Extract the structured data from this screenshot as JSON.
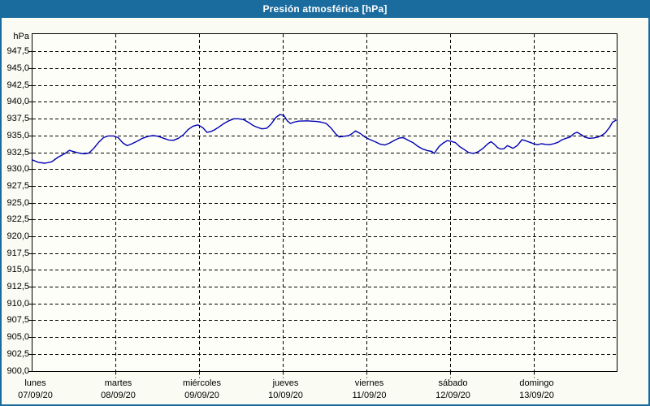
{
  "window": {
    "title": "Presión atmosférica [hPa]",
    "titlebar_color": "#1B6C9E",
    "border_color": "#1B6C9E",
    "background_color": "#FAFBF2"
  },
  "chart_data": {
    "type": "line",
    "title": "Presión atmosférica [hPa]",
    "unit": "hPa",
    "ylim": [
      900,
      950
    ],
    "ytick_step": 2.5,
    "yticks_values": [
      947.5,
      945.0,
      942.5,
      940.0,
      937.5,
      935.0,
      932.5,
      930.0,
      927.5,
      925.0,
      922.5,
      920.0,
      917.5,
      915.0,
      912.5,
      910.0,
      907.5,
      905.0,
      902.5,
      900.0
    ],
    "yticks_display": [
      "947,5",
      "945,0",
      "942,5",
      "940,0",
      "937,5",
      "935,0",
      "932,5",
      "930,0",
      "927,5",
      "925,0",
      "922,5",
      "920,0",
      "917,5",
      "915,0",
      "912,5",
      "910,0",
      "907,5",
      "905,0",
      "902,5",
      "900,0"
    ],
    "grid": "dashed",
    "legend": "none",
    "line_color": "#0000B4",
    "x_hours_span": 168,
    "x_days": [
      {
        "name": "lunes",
        "date": "07/09/20"
      },
      {
        "name": "martes",
        "date": "08/09/20"
      },
      {
        "name": "miércoles",
        "date": "09/09/20"
      },
      {
        "name": "jueves",
        "date": "10/09/20"
      },
      {
        "name": "viernes",
        "date": "11/09/20"
      },
      {
        "name": "sábado",
        "date": "12/09/20"
      },
      {
        "name": "domingo",
        "date": "13/09/20"
      }
    ],
    "series": [
      {
        "name": "Presión atmosférica",
        "points": [
          [
            0,
            931.5
          ],
          [
            1.9,
            931.1
          ],
          [
            3.7,
            931.0
          ],
          [
            5.6,
            931.2
          ],
          [
            7.5,
            931.9
          ],
          [
            9.3,
            932.4
          ],
          [
            10.7,
            932.9
          ],
          [
            12.1,
            932.7
          ],
          [
            13.5,
            932.5
          ],
          [
            14.9,
            932.4
          ],
          [
            16.3,
            932.5
          ],
          [
            17.7,
            933.2
          ],
          [
            19.1,
            934.1
          ],
          [
            20.5,
            934.8
          ],
          [
            21.9,
            935.05
          ],
          [
            23.3,
            935.05
          ],
          [
            24.7,
            934.8
          ],
          [
            26.1,
            934.0
          ],
          [
            27.3,
            933.6
          ],
          [
            28.7,
            933.9
          ],
          [
            30.3,
            934.3
          ],
          [
            31.7,
            934.7
          ],
          [
            33.4,
            935.0
          ],
          [
            34.8,
            935.1
          ],
          [
            36.2,
            935.0
          ],
          [
            37.8,
            934.7
          ],
          [
            39.2,
            934.45
          ],
          [
            40.6,
            934.4
          ],
          [
            42.0,
            934.7
          ],
          [
            43.4,
            935.2
          ],
          [
            44.8,
            936.0
          ],
          [
            46.2,
            936.5
          ],
          [
            47.6,
            936.7
          ],
          [
            49.0,
            936.3
          ],
          [
            50.2,
            935.6
          ],
          [
            51.3,
            935.7
          ],
          [
            52.5,
            936.0
          ],
          [
            53.7,
            936.4
          ],
          [
            55.1,
            936.9
          ],
          [
            56.5,
            937.3
          ],
          [
            57.9,
            937.6
          ],
          [
            59.3,
            937.6
          ],
          [
            60.7,
            937.5
          ],
          [
            62.1,
            937.1
          ],
          [
            63.5,
            936.6
          ],
          [
            64.9,
            936.3
          ],
          [
            66.0,
            936.1
          ],
          [
            67.4,
            936.2
          ],
          [
            68.6,
            936.8
          ],
          [
            70.0,
            937.8
          ],
          [
            71.2,
            938.25
          ],
          [
            72.3,
            938.1
          ],
          [
            73.3,
            937.3
          ],
          [
            74.2,
            936.9
          ],
          [
            75.1,
            937.1
          ],
          [
            76.5,
            937.25
          ],
          [
            78.9,
            937.3
          ],
          [
            81.7,
            937.2
          ],
          [
            83.1,
            937.1
          ],
          [
            84.5,
            936.9
          ],
          [
            85.9,
            936.2
          ],
          [
            87.3,
            935.3
          ],
          [
            88.2,
            934.9
          ],
          [
            89.6,
            935.0
          ],
          [
            91.0,
            935.1
          ],
          [
            91.9,
            935.4
          ],
          [
            92.9,
            935.8
          ],
          [
            94.3,
            935.4
          ],
          [
            95.7,
            934.85
          ],
          [
            97.1,
            934.5
          ],
          [
            98.5,
            934.2
          ],
          [
            99.9,
            933.85
          ],
          [
            101.3,
            933.7
          ],
          [
            102.7,
            934.0
          ],
          [
            104.1,
            934.4
          ],
          [
            105.5,
            934.75
          ],
          [
            106.6,
            934.8
          ],
          [
            108.0,
            934.4
          ],
          [
            109.4,
            934.05
          ],
          [
            110.8,
            933.5
          ],
          [
            112.2,
            933.1
          ],
          [
            113.6,
            932.85
          ],
          [
            114.8,
            932.75
          ],
          [
            115.5,
            932.45
          ],
          [
            116.2,
            933.0
          ],
          [
            116.9,
            933.5
          ],
          [
            118.1,
            934.0
          ],
          [
            119.2,
            934.35
          ],
          [
            120.4,
            934.25
          ],
          [
            121.6,
            934.05
          ],
          [
            122.7,
            933.5
          ],
          [
            123.9,
            933.1
          ],
          [
            125.3,
            932.6
          ],
          [
            126.7,
            932.45
          ],
          [
            128.1,
            932.7
          ],
          [
            129.5,
            933.2
          ],
          [
            130.9,
            933.9
          ],
          [
            131.8,
            934.2
          ],
          [
            132.8,
            933.8
          ],
          [
            133.7,
            933.3
          ],
          [
            134.6,
            933.1
          ],
          [
            135.5,
            933.15
          ],
          [
            136.5,
            933.6
          ],
          [
            137.4,
            933.4
          ],
          [
            138.1,
            933.2
          ],
          [
            139.3,
            933.6
          ],
          [
            140.7,
            934.5
          ],
          [
            141.9,
            934.3
          ],
          [
            143.0,
            934.1
          ],
          [
            144.0,
            933.9
          ],
          [
            145.1,
            933.75
          ],
          [
            146.3,
            933.9
          ],
          [
            147.4,
            933.8
          ],
          [
            148.6,
            933.75
          ],
          [
            149.8,
            933.9
          ],
          [
            151.0,
            934.1
          ],
          [
            152.1,
            934.45
          ],
          [
            153.3,
            934.7
          ],
          [
            154.4,
            934.85
          ],
          [
            155.6,
            935.4
          ],
          [
            156.5,
            935.6
          ],
          [
            157.7,
            935.25
          ],
          [
            158.8,
            934.85
          ],
          [
            160.0,
            934.7
          ],
          [
            161.2,
            934.75
          ],
          [
            162.3,
            934.85
          ],
          [
            163.5,
            935.1
          ],
          [
            164.6,
            935.5
          ],
          [
            165.8,
            936.3
          ],
          [
            166.7,
            937.1
          ],
          [
            167.7,
            937.4
          ]
        ]
      }
    ]
  }
}
